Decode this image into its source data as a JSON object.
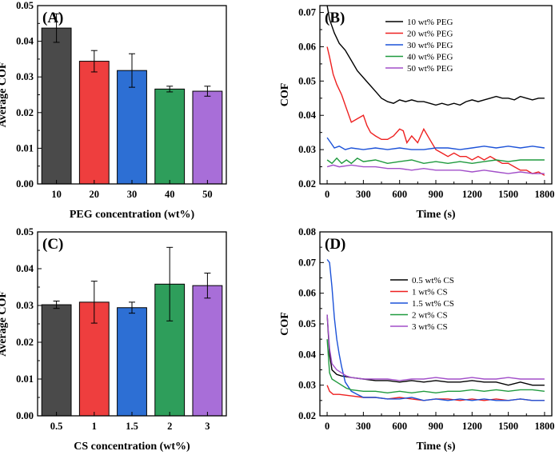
{
  "chart_data": [
    {
      "id": "A",
      "type": "bar",
      "panel_label": "(A)",
      "categories": [
        "10",
        "20",
        "30",
        "40",
        "50"
      ],
      "values": [
        0.0437,
        0.0344,
        0.0318,
        0.0266,
        0.026
      ],
      "errors": [
        0.004,
        0.003,
        0.0047,
        0.0008,
        0.0014
      ],
      "colors": [
        "#4a4a4a",
        "#ee3e3e",
        "#2d6fd4",
        "#2e9e5b",
        "#a86ed8"
      ],
      "xlabel": "PEG concentration (wt%)",
      "ylabel": "Average COF",
      "ylim": [
        0,
        0.05
      ],
      "yticks": [
        "0.00",
        "0.01",
        "0.02",
        "0.03",
        "0.04",
        "0.05"
      ]
    },
    {
      "id": "B",
      "type": "line",
      "panel_label": "(B)",
      "xlabel": "Time (s)",
      "ylabel": "COF",
      "xlim": [
        -60,
        1860
      ],
      "ylim": [
        0.02,
        0.072
      ],
      "xticks": [
        "0",
        "300",
        "600",
        "900",
        "1200",
        "1500",
        "1800"
      ],
      "yticks": [
        "0.02",
        "0.03",
        "0.04",
        "0.05",
        "0.06",
        "0.07"
      ],
      "legend_position": "top-right",
      "series": [
        {
          "name": "10 wt% PEG",
          "color": "#000000",
          "x": [
            0,
            20,
            60,
            100,
            150,
            200,
            250,
            300,
            350,
            400,
            450,
            500,
            550,
            600,
            650,
            700,
            750,
            800,
            850,
            900,
            950,
            1000,
            1050,
            1100,
            1150,
            1200,
            1250,
            1300,
            1350,
            1400,
            1450,
            1500,
            1550,
            1600,
            1650,
            1700,
            1750,
            1800
          ],
          "y": [
            0.072,
            0.068,
            0.064,
            0.061,
            0.059,
            0.056,
            0.053,
            0.051,
            0.049,
            0.047,
            0.045,
            0.044,
            0.0435,
            0.0445,
            0.044,
            0.0445,
            0.044,
            0.044,
            0.0435,
            0.043,
            0.0435,
            0.043,
            0.0435,
            0.043,
            0.044,
            0.0445,
            0.044,
            0.0445,
            0.045,
            0.0455,
            0.045,
            0.045,
            0.0445,
            0.0455,
            0.045,
            0.0445,
            0.045,
            0.045
          ]
        },
        {
          "name": "20 wt% PEG",
          "color": "#ee2020",
          "x": [
            0,
            20,
            50,
            80,
            120,
            160,
            200,
            250,
            300,
            330,
            360,
            400,
            450,
            500,
            550,
            600,
            630,
            660,
            700,
            750,
            800,
            850,
            900,
            950,
            1000,
            1050,
            1100,
            1150,
            1200,
            1250,
            1300,
            1350,
            1400,
            1450,
            1500,
            1550,
            1600,
            1650,
            1700,
            1750,
            1800
          ],
          "y": [
            0.06,
            0.057,
            0.052,
            0.049,
            0.046,
            0.042,
            0.038,
            0.039,
            0.04,
            0.037,
            0.035,
            0.034,
            0.033,
            0.033,
            0.034,
            0.036,
            0.0355,
            0.032,
            0.034,
            0.032,
            0.036,
            0.033,
            0.03,
            0.029,
            0.028,
            0.029,
            0.028,
            0.028,
            0.027,
            0.028,
            0.027,
            0.028,
            0.027,
            0.026,
            0.026,
            0.025,
            0.024,
            0.024,
            0.023,
            0.0235,
            0.0225
          ]
        },
        {
          "name": "30 wt% PEG",
          "color": "#1c52d8",
          "x": [
            0,
            30,
            60,
            100,
            150,
            200,
            300,
            400,
            500,
            600,
            700,
            800,
            900,
            1000,
            1100,
            1200,
            1300,
            1400,
            1500,
            1600,
            1700,
            1800
          ],
          "y": [
            0.0335,
            0.032,
            0.0305,
            0.031,
            0.03,
            0.0305,
            0.03,
            0.0305,
            0.03,
            0.0305,
            0.03,
            0.03,
            0.0305,
            0.0305,
            0.03,
            0.0305,
            0.031,
            0.0305,
            0.031,
            0.0305,
            0.031,
            0.0305
          ]
        },
        {
          "name": "40 wt% PEG",
          "color": "#1f9a3e",
          "x": [
            0,
            40,
            80,
            120,
            160,
            200,
            250,
            300,
            400,
            500,
            600,
            700,
            800,
            900,
            1000,
            1100,
            1200,
            1300,
            1400,
            1500,
            1600,
            1700,
            1800
          ],
          "y": [
            0.027,
            0.026,
            0.0275,
            0.026,
            0.027,
            0.026,
            0.0275,
            0.0265,
            0.027,
            0.026,
            0.0265,
            0.027,
            0.026,
            0.0265,
            0.026,
            0.0265,
            0.026,
            0.0265,
            0.027,
            0.0265,
            0.027,
            0.027,
            0.027
          ]
        },
        {
          "name": "50 wt% PEG",
          "color": "#a24fc9",
          "x": [
            0,
            50,
            100,
            200,
            300,
            400,
            500,
            600,
            700,
            800,
            900,
            1000,
            1100,
            1200,
            1300,
            1400,
            1500,
            1600,
            1700,
            1800
          ],
          "y": [
            0.025,
            0.0255,
            0.025,
            0.0255,
            0.025,
            0.025,
            0.0245,
            0.0245,
            0.024,
            0.0245,
            0.024,
            0.024,
            0.024,
            0.0235,
            0.024,
            0.0235,
            0.023,
            0.0235,
            0.023,
            0.023
          ]
        }
      ]
    },
    {
      "id": "C",
      "type": "bar",
      "panel_label": "(C)",
      "categories": [
        "0.5",
        "1",
        "1.5",
        "2",
        "3"
      ],
      "values": [
        0.0302,
        0.0309,
        0.0294,
        0.0358,
        0.0354
      ],
      "errors": [
        0.001,
        0.0057,
        0.0015,
        0.01,
        0.0034
      ],
      "colors": [
        "#4a4a4a",
        "#ee3e3e",
        "#2d6fd4",
        "#2e9e5b",
        "#a86ed8"
      ],
      "xlabel": "CS concentration (wt%)",
      "ylabel": "Average COF",
      "ylim": [
        0,
        0.05
      ],
      "yticks": [
        "0.00",
        "0.01",
        "0.02",
        "0.03",
        "0.04",
        "0.05"
      ]
    },
    {
      "id": "D",
      "type": "line",
      "panel_label": "(D)",
      "xlabel": "Time (s)",
      "ylabel": "COF",
      "xlim": [
        -60,
        1860
      ],
      "ylim": [
        0.02,
        0.08
      ],
      "xticks": [
        "0",
        "300",
        "600",
        "900",
        "1200",
        "1500",
        "1800"
      ],
      "yticks": [
        "0.02",
        "0.03",
        "0.04",
        "0.05",
        "0.06",
        "0.07",
        "0.08"
      ],
      "legend_position": "center-right",
      "series": [
        {
          "name": "0.5 wt% CS",
          "color": "#000000",
          "x": [
            0,
            20,
            40,
            80,
            120,
            200,
            300,
            400,
            500,
            600,
            700,
            800,
            900,
            1000,
            1100,
            1200,
            1300,
            1400,
            1500,
            1600,
            1700,
            1800
          ],
          "y": [
            0.053,
            0.04,
            0.035,
            0.0335,
            0.033,
            0.0325,
            0.032,
            0.0315,
            0.0315,
            0.031,
            0.0315,
            0.031,
            0.0315,
            0.031,
            0.031,
            0.0315,
            0.031,
            0.031,
            0.03,
            0.031,
            0.03,
            0.03
          ]
        },
        {
          "name": "1 wt% CS",
          "color": "#ee2020",
          "x": [
            0,
            20,
            50,
            100,
            200,
            300,
            400,
            500,
            600,
            700,
            800,
            900,
            1000,
            1100,
            1200,
            1300,
            1400,
            1500,
            1600,
            1700,
            1800
          ],
          "y": [
            0.03,
            0.028,
            0.027,
            0.027,
            0.0265,
            0.026,
            0.026,
            0.0255,
            0.026,
            0.0255,
            0.025,
            0.0255,
            0.0255,
            0.025,
            0.0255,
            0.025,
            0.0255,
            0.025,
            0.0255,
            0.025,
            0.025
          ]
        },
        {
          "name": "1.5 wt% CS",
          "color": "#1c52d8",
          "x": [
            0,
            20,
            40,
            60,
            80,
            100,
            120,
            150,
            200,
            250,
            300,
            400,
            500,
            600,
            700,
            800,
            900,
            1000,
            1100,
            1200,
            1300,
            1400,
            1500,
            1600,
            1700,
            1800
          ],
          "y": [
            0.071,
            0.07,
            0.062,
            0.052,
            0.045,
            0.04,
            0.036,
            0.031,
            0.028,
            0.027,
            0.026,
            0.026,
            0.0255,
            0.0255,
            0.026,
            0.025,
            0.0255,
            0.025,
            0.0255,
            0.025,
            0.0255,
            0.025,
            0.025,
            0.0255,
            0.025,
            0.025
          ]
        },
        {
          "name": "2 wt% CS",
          "color": "#1f9a3e",
          "x": [
            0,
            20,
            40,
            80,
            120,
            160,
            200,
            300,
            400,
            500,
            600,
            700,
            800,
            900,
            1000,
            1100,
            1200,
            1300,
            1400,
            1500,
            1600,
            1700,
            1800
          ],
          "y": [
            0.045,
            0.034,
            0.032,
            0.031,
            0.03,
            0.029,
            0.0285,
            0.028,
            0.028,
            0.0275,
            0.028,
            0.0275,
            0.028,
            0.0275,
            0.028,
            0.028,
            0.0285,
            0.028,
            0.0285,
            0.028,
            0.0285,
            0.0285,
            0.028
          ]
        },
        {
          "name": "3 wt% CS",
          "color": "#a24fc9",
          "x": [
            0,
            20,
            40,
            80,
            120,
            160,
            200,
            300,
            400,
            500,
            600,
            700,
            800,
            900,
            1000,
            1100,
            1200,
            1300,
            1400,
            1500,
            1600,
            1700,
            1800
          ],
          "y": [
            0.053,
            0.042,
            0.037,
            0.035,
            0.034,
            0.033,
            0.0325,
            0.032,
            0.032,
            0.032,
            0.0315,
            0.032,
            0.032,
            0.0325,
            0.032,
            0.032,
            0.0325,
            0.032,
            0.032,
            0.0325,
            0.032,
            0.032,
            0.032
          ]
        }
      ]
    }
  ]
}
